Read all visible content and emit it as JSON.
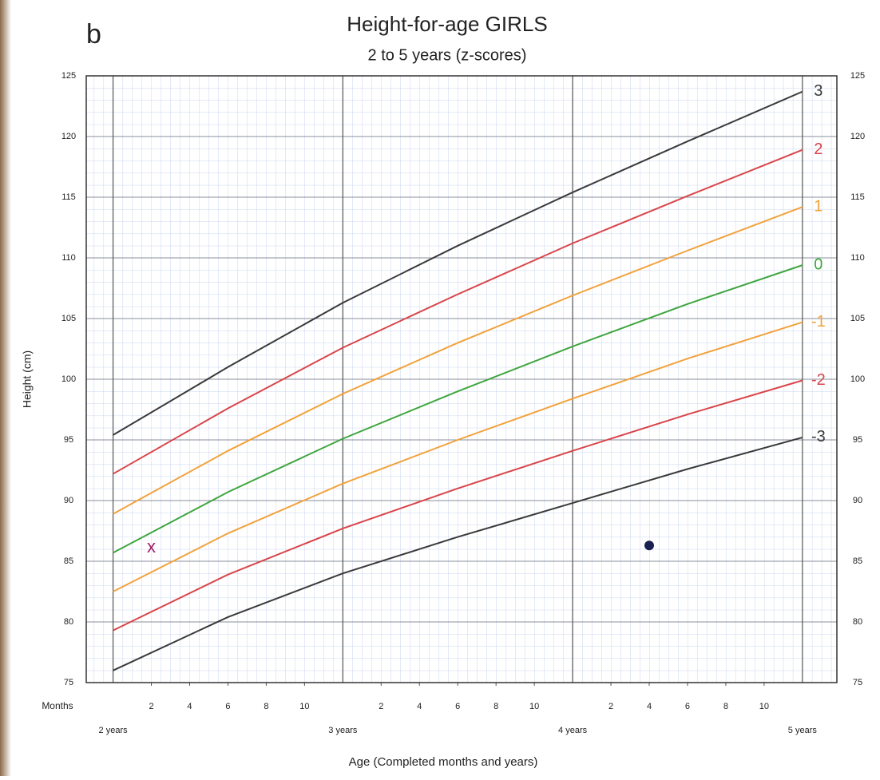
{
  "chart_data": {
    "type": "line",
    "panel_label": "b",
    "title": "Height-for-age  GIRLS",
    "subtitle": "2 to 5 years (z-scores)",
    "ylabel": "Height (cm)",
    "xlabel": "Age (Completed months and years)",
    "months_label": "Months",
    "x": [
      24,
      30,
      36,
      42,
      48,
      54,
      60
    ],
    "xlim": [
      22.6,
      61.8
    ],
    "ylim": [
      75,
      125
    ],
    "yticks": [
      75,
      80,
      85,
      90,
      95,
      100,
      105,
      110,
      115,
      120,
      125
    ],
    "xticks": [
      {
        "value": 26,
        "label": "2"
      },
      {
        "value": 28,
        "label": "4"
      },
      {
        "value": 30,
        "label": "6"
      },
      {
        "value": 32,
        "label": "8"
      },
      {
        "value": 34,
        "label": "10"
      },
      {
        "value": 38,
        "label": "2"
      },
      {
        "value": 40,
        "label": "4"
      },
      {
        "value": 42,
        "label": "6"
      },
      {
        "value": 44,
        "label": "8"
      },
      {
        "value": 46,
        "label": "10"
      },
      {
        "value": 50,
        "label": "2"
      },
      {
        "value": 52,
        "label": "4"
      },
      {
        "value": 54,
        "label": "6"
      },
      {
        "value": 56,
        "label": "8"
      },
      {
        "value": 58,
        "label": "10"
      }
    ],
    "year_ticks": [
      {
        "value": 24,
        "label": "2 years"
      },
      {
        "value": 36,
        "label": "3 years"
      },
      {
        "value": 48,
        "label": "4 years"
      },
      {
        "value": 60,
        "label": "5 years"
      }
    ],
    "grid": true,
    "series": [
      {
        "name": "3",
        "color": "#3a3a3a",
        "values": [
          95.4,
          101.0,
          106.3,
          111.0,
          115.4,
          119.6,
          123.7
        ]
      },
      {
        "name": "2",
        "color": "#d9454a",
        "values": [
          92.2,
          97.6,
          102.6,
          107.0,
          111.2,
          115.1,
          118.9
        ]
      },
      {
        "name": "1",
        "color": "#f2a23c",
        "values": [
          88.9,
          94.1,
          98.8,
          103.0,
          106.9,
          110.6,
          114.2
        ]
      },
      {
        "name": "0",
        "color": "#3fa63f",
        "values": [
          85.7,
          90.7,
          95.1,
          99.0,
          102.7,
          106.2,
          109.4
        ]
      },
      {
        "name": "-1",
        "color": "#f2a23c",
        "values": [
          82.5,
          87.3,
          91.4,
          95.0,
          98.4,
          101.7,
          104.7
        ]
      },
      {
        "name": "-2",
        "color": "#d9454a",
        "values": [
          79.3,
          83.9,
          87.7,
          91.0,
          94.1,
          97.1,
          99.9
        ]
      },
      {
        "name": "-3",
        "color": "#3a3a3a",
        "values": [
          76.0,
          80.4,
          84.0,
          87.0,
          89.8,
          92.6,
          95.2
        ]
      }
    ],
    "markers": [
      {
        "x": 26,
        "y": 86.1,
        "label": "x",
        "color": "#a0206a"
      },
      {
        "x": 52,
        "y": 86.3,
        "color": "#1a2050"
      }
    ]
  }
}
